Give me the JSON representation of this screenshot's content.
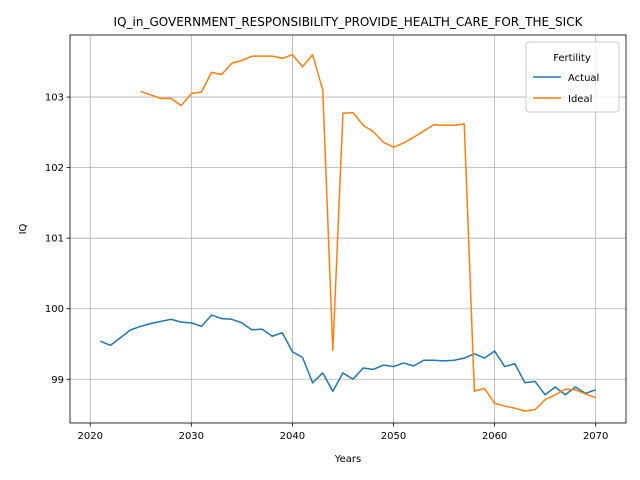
{
  "chart_data": {
    "type": "line",
    "title": "IQ_in_GOVERNMENT_RESPONSIBILITY_PROVIDE_HEALTH_CARE_FOR_THE_SICK",
    "xlabel": "Years",
    "ylabel": "IQ",
    "xlim": [
      2018,
      2073
    ],
    "ylim": [
      98.38,
      103.88
    ],
    "xticks": [
      2020,
      2030,
      2040,
      2050,
      2060,
      2070
    ],
    "yticks": [
      99,
      100,
      101,
      102,
      103
    ],
    "grid": true,
    "legend": {
      "title": "Fertility",
      "position": "top-right"
    },
    "series": [
      {
        "name": "Actual",
        "color": "#1f77b4",
        "x": [
          2021,
          2022,
          2023,
          2024,
          2025,
          2026,
          2027,
          2028,
          2029,
          2030,
          2031,
          2032,
          2033,
          2034,
          2035,
          2036,
          2037,
          2038,
          2039,
          2040,
          2041,
          2042,
          2043,
          2044,
          2045,
          2046,
          2047,
          2048,
          2049,
          2050,
          2051,
          2052,
          2053,
          2054,
          2055,
          2056,
          2057,
          2058,
          2059,
          2060,
          2061,
          2062,
          2063,
          2064,
          2065,
          2066,
          2067,
          2068,
          2069,
          2070
        ],
        "y": [
          99.54,
          99.48,
          99.59,
          99.7,
          99.75,
          99.79,
          99.82,
          99.85,
          99.81,
          99.8,
          99.75,
          99.91,
          99.86,
          99.85,
          99.8,
          99.7,
          99.71,
          99.61,
          99.66,
          99.39,
          99.31,
          98.95,
          99.09,
          98.83,
          99.09,
          99.0,
          99.16,
          99.14,
          99.2,
          99.18,
          99.23,
          99.19,
          99.27,
          99.27,
          99.26,
          99.27,
          99.3,
          99.36,
          99.3,
          99.4,
          99.18,
          99.22,
          98.95,
          98.97,
          98.78,
          98.89,
          98.78,
          98.89,
          98.8,
          98.85
        ]
      },
      {
        "name": "Ideal",
        "color": "#ff7f0e",
        "x": [
          2025,
          2026,
          2027,
          2028,
          2029,
          2030,
          2031,
          2032,
          2033,
          2034,
          2035,
          2036,
          2037,
          2038,
          2039,
          2040,
          2041,
          2042,
          2043,
          2044,
          2045,
          2046,
          2047,
          2048,
          2049,
          2050,
          2051,
          2052,
          2053,
          2054,
          2055,
          2056,
          2057,
          2058,
          2059,
          2060,
          2061,
          2062,
          2063,
          2064,
          2065,
          2066,
          2067,
          2068,
          2069,
          2070
        ],
        "y": [
          103.08,
          103.03,
          102.98,
          102.98,
          102.88,
          103.05,
          103.07,
          103.35,
          103.32,
          103.48,
          103.52,
          103.58,
          103.58,
          103.58,
          103.55,
          103.6,
          103.43,
          103.6,
          103.1,
          99.41,
          102.77,
          102.78,
          102.6,
          102.51,
          102.36,
          102.29,
          102.35,
          102.43,
          102.52,
          102.61,
          102.6,
          102.6,
          102.62,
          98.83,
          98.87,
          98.66,
          98.62,
          98.59,
          98.55,
          98.57,
          98.71,
          98.78,
          98.86,
          98.85,
          98.79,
          98.74
        ]
      }
    ]
  }
}
